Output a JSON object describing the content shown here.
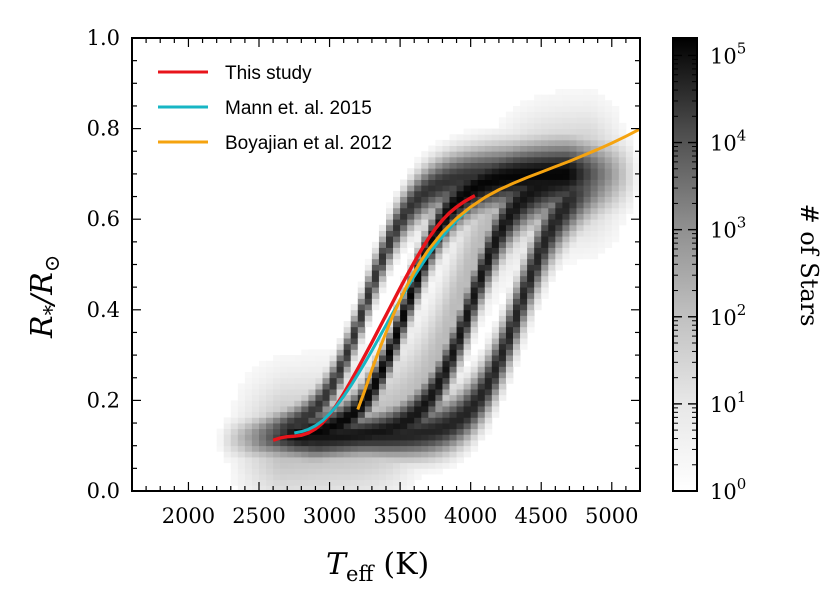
{
  "chart_data": {
    "type": "heatmap",
    "xlabel_main": "T",
    "xlabel_sub": "eff",
    "xlabel_unit": "(K)",
    "ylabel_main": "R",
    "ylabel_sub1": "*",
    "ylabel_mid": "/R",
    "ylabel_sub2": "⊙",
    "xlim": [
      1600,
      5200
    ],
    "ylim": [
      0.0,
      1.0
    ],
    "x_ticks": [
      2000,
      2500,
      3000,
      3500,
      4000,
      4500,
      5000
    ],
    "x_tick_labels": [
      "2000",
      "2500",
      "3000",
      "3500",
      "4000",
      "4500",
      "5000"
    ],
    "y_ticks": [
      0.0,
      0.2,
      0.4,
      0.6,
      0.8,
      1.0
    ],
    "y_tick_labels": [
      "0.0",
      "0.2",
      "0.4",
      "0.6",
      "0.8",
      "1.0"
    ],
    "colorbar": {
      "label": "# of Stars",
      "scale": "log",
      "ticks": [
        0,
        1,
        2,
        3,
        4,
        5
      ],
      "tick_labels_base": [
        "10",
        "10",
        "10",
        "10",
        "10",
        "10"
      ],
      "tick_labels_exp": [
        "0",
        "1",
        "2",
        "3",
        "4",
        "5"
      ],
      "range_log10": [
        0,
        5.2
      ]
    },
    "series": [
      {
        "name": "This study",
        "color": "#e8141b",
        "x": [
          2600,
          2650,
          2700,
          2750,
          2800,
          2850,
          2900,
          2950,
          3000,
          3050,
          3100,
          3150,
          3200,
          3250,
          3300,
          3350,
          3400,
          3450,
          3500,
          3550,
          3600,
          3650,
          3700,
          3750,
          3800,
          3850,
          3900,
          3950,
          4000,
          4030
        ],
        "y": [
          0.112,
          0.117,
          0.12,
          0.121,
          0.123,
          0.128,
          0.137,
          0.15,
          0.168,
          0.19,
          0.215,
          0.242,
          0.27,
          0.299,
          0.328,
          0.358,
          0.388,
          0.418,
          0.448,
          0.477,
          0.505,
          0.532,
          0.557,
          0.579,
          0.598,
          0.614,
          0.627,
          0.638,
          0.647,
          0.652
        ]
      },
      {
        "name": "Mann et. al. 2015",
        "color": "#17b6c4",
        "x": [
          2750,
          2800,
          2850,
          2900,
          2950,
          3000,
          3050,
          3100,
          3150,
          3200,
          3250,
          3300,
          3350,
          3400,
          3450,
          3500,
          3550,
          3600,
          3650,
          3700,
          3750,
          3800,
          3850,
          3900,
          3950,
          4000
        ],
        "y": [
          0.128,
          0.131,
          0.136,
          0.144,
          0.155,
          0.17,
          0.188,
          0.209,
          0.232,
          0.257,
          0.283,
          0.31,
          0.338,
          0.366,
          0.394,
          0.421,
          0.448,
          0.474,
          0.498,
          0.521,
          0.542,
          0.562,
          0.58,
          0.597,
          0.612,
          0.626
        ]
      },
      {
        "name": "Boyajian et al. 2012",
        "color": "#f5a30f",
        "x": [
          3200,
          3250,
          3300,
          3350,
          3400,
          3450,
          3500,
          3550,
          3600,
          3650,
          3700,
          3800,
          3900,
          4000,
          4100,
          4200,
          4300,
          4400,
          4500,
          4600,
          4700,
          4800,
          4900,
          5000,
          5100,
          5200
        ],
        "y": [
          0.18,
          0.222,
          0.268,
          0.31,
          0.35,
          0.388,
          0.422,
          0.454,
          0.483,
          0.509,
          0.532,
          0.571,
          0.602,
          0.627,
          0.648,
          0.665,
          0.679,
          0.692,
          0.704,
          0.716,
          0.728,
          0.741,
          0.754,
          0.768,
          0.783,
          0.799
        ]
      }
    ],
    "density_ridges": [
      {
        "x0": 2750,
        "xd": 3550,
        "weight": 5.1,
        "xlo": 2250,
        "xhi": 5200
      },
      {
        "x0": 2950,
        "xd": 4000,
        "weight": 4.8,
        "xlo": 2300,
        "xhi": 5200
      },
      {
        "x0": 3250,
        "xd": 4350,
        "weight": 4.5,
        "xlo": 2400,
        "xhi": 5200
      },
      {
        "x0": 2600,
        "xd": 3250,
        "weight": 4.2,
        "xlo": 2200,
        "xhi": 5200
      }
    ],
    "legend_position": "upper-left"
  }
}
